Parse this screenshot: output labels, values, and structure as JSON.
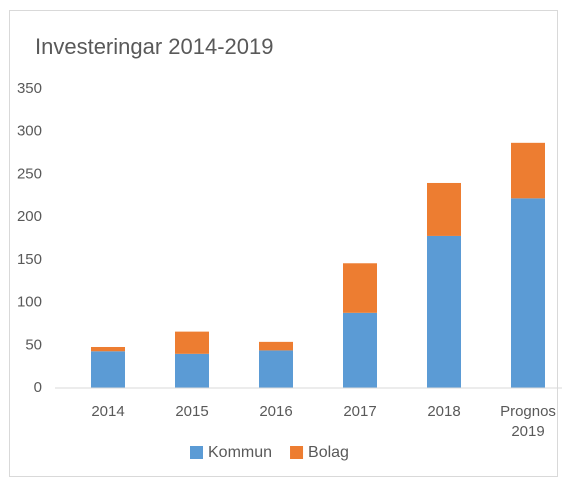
{
  "chart_data": {
    "type": "stacked_bar",
    "title": "Investeringar 2014-2019",
    "categories": [
      "2014",
      "2015",
      "2016",
      "2017",
      "2018",
      "Prognos 2019"
    ],
    "series": [
      {
        "name": "Kommun",
        "color": "#5b9bd5",
        "values": [
          43,
          40,
          44,
          88,
          178,
          222
        ]
      },
      {
        "name": "Bolag",
        "color": "#ed7d31",
        "values": [
          5,
          26,
          10,
          58,
          62,
          65
        ]
      }
    ],
    "ylim": [
      0,
      350
    ],
    "yticks": [
      0,
      50,
      100,
      150,
      200,
      250,
      300,
      350
    ],
    "grid": false,
    "legend": "bottom"
  }
}
